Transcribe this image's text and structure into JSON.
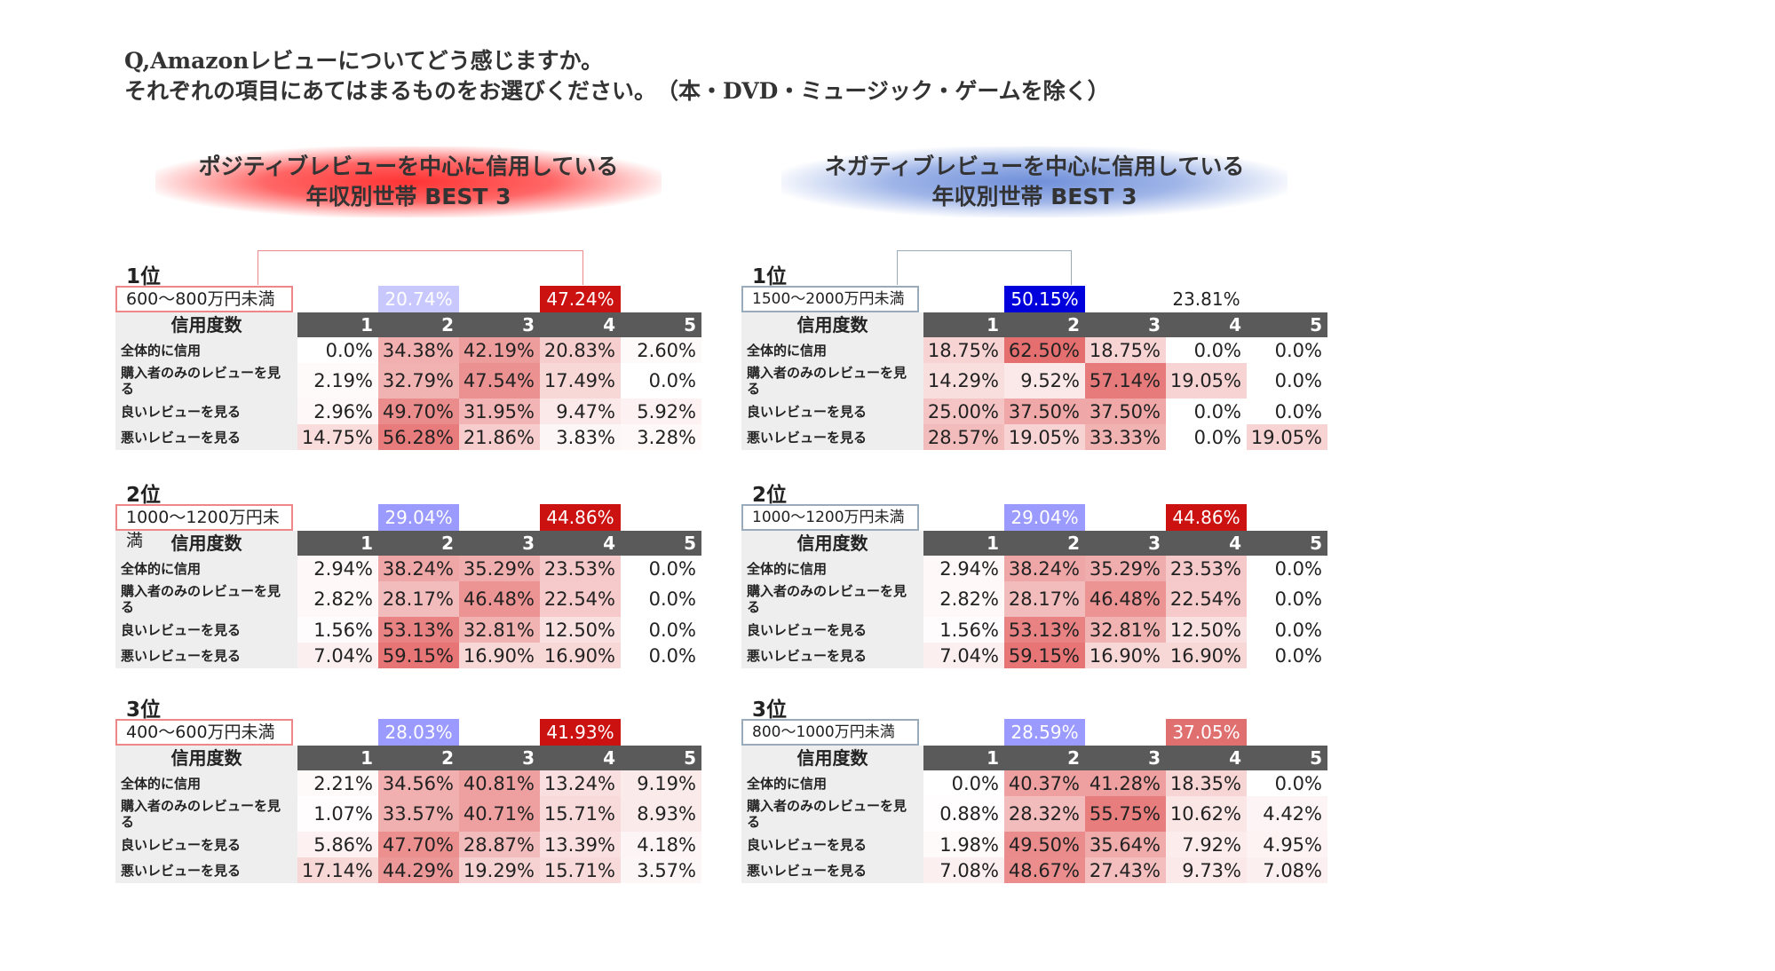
{
  "question": {
    "line1": "Q,Amazonレビューについてどう感じますか。",
    "line2": "それぞれの項目にあてはまるものをお選びください。　（本・DVD・ミュージック・ゲームを除く）"
  },
  "banners": {
    "positive": {
      "line1": "ポジティブレビューを中心に信用している",
      "line2": "年収別世帯 BEST 3"
    },
    "negative": {
      "line1": "ネガティブレビューを中心に信用している",
      "line2": "年収別世帯 BEST 3"
    }
  },
  "header_label": "信用度数",
  "columns": [
    "1",
    "2",
    "3",
    "4",
    "5"
  ],
  "row_labels": [
    "全体的に信用",
    "購入者のみのレビューを見る",
    "良いレビューを見る",
    "悪いレビューを見る"
  ],
  "colors": {
    "heat": "#e05050",
    "blue_strong": "#0000dd",
    "blue_light": "#9a9aff",
    "red_strong": "#cc1111",
    "red_light": "#e07070",
    "header_bg": "#5a5a5a"
  },
  "positive": [
    {
      "rank": "1位",
      "income": "600〜800万円未満",
      "low": "20.74%",
      "high": "47.24%",
      "rows": [
        [
          "0.0%",
          "34.38%",
          "42.19%",
          "20.83%",
          "2.60%"
        ],
        [
          "2.19%",
          "32.79%",
          "47.54%",
          "17.49%",
          "0.0%"
        ],
        [
          "2.96%",
          "49.70%",
          "31.95%",
          "9.47%",
          "5.92%"
        ],
        [
          "14.75%",
          "56.28%",
          "21.86%",
          "3.83%",
          "3.28%"
        ]
      ]
    },
    {
      "rank": "2位",
      "income": "1000〜1200万円未満",
      "low": "29.04%",
      "high": "44.86%",
      "rows": [
        [
          "2.94%",
          "38.24%",
          "35.29%",
          "23.53%",
          "0.0%"
        ],
        [
          "2.82%",
          "28.17%",
          "46.48%",
          "22.54%",
          "0.0%"
        ],
        [
          "1.56%",
          "53.13%",
          "32.81%",
          "12.50%",
          "0.0%"
        ],
        [
          "7.04%",
          "59.15%",
          "16.90%",
          "16.90%",
          "0.0%"
        ]
      ]
    },
    {
      "rank": "3位",
      "income": "400〜600万円未満",
      "low": "28.03%",
      "high": "41.93%",
      "rows": [
        [
          "2.21%",
          "34.56%",
          "40.81%",
          "13.24%",
          "9.19%"
        ],
        [
          "1.07%",
          "33.57%",
          "40.71%",
          "15.71%",
          "8.93%"
        ],
        [
          "5.86%",
          "47.70%",
          "28.87%",
          "13.39%",
          "4.18%"
        ],
        [
          "17.14%",
          "44.29%",
          "19.29%",
          "15.71%",
          "3.57%"
        ]
      ]
    }
  ],
  "negative": [
    {
      "rank": "1位",
      "income": "1500〜2000万円未満",
      "low": "50.15%",
      "high": "23.81%",
      "rows": [
        [
          "18.75%",
          "62.50%",
          "18.75%",
          "0.0%",
          "0.0%"
        ],
        [
          "14.29%",
          "9.52%",
          "57.14%",
          "19.05%",
          "0.0%"
        ],
        [
          "25.00%",
          "37.50%",
          "37.50%",
          "0.0%",
          "0.0%"
        ],
        [
          "28.57%",
          "19.05%",
          "33.33%",
          "0.0%",
          "19.05%"
        ]
      ]
    },
    {
      "rank": "2位",
      "income": "1000〜1200万円未満",
      "low": "29.04%",
      "high": "44.86%",
      "rows": [
        [
          "2.94%",
          "38.24%",
          "35.29%",
          "23.53%",
          "0.0%"
        ],
        [
          "2.82%",
          "28.17%",
          "46.48%",
          "22.54%",
          "0.0%"
        ],
        [
          "1.56%",
          "53.13%",
          "32.81%",
          "12.50%",
          "0.0%"
        ],
        [
          "7.04%",
          "59.15%",
          "16.90%",
          "16.90%",
          "0.0%"
        ]
      ]
    },
    {
      "rank": "3位",
      "income": "800〜1000万円未満",
      "low": "28.59%",
      "high": "37.05%",
      "rows": [
        [
          "0.0%",
          "40.37%",
          "41.28%",
          "18.35%",
          "0.0%"
        ],
        [
          "0.88%",
          "28.32%",
          "55.75%",
          "10.62%",
          "4.42%"
        ],
        [
          "1.98%",
          "49.50%",
          "35.64%",
          "7.92%",
          "4.95%"
        ],
        [
          "7.08%",
          "48.67%",
          "27.43%",
          "9.73%",
          "7.08%"
        ]
      ]
    }
  ]
}
